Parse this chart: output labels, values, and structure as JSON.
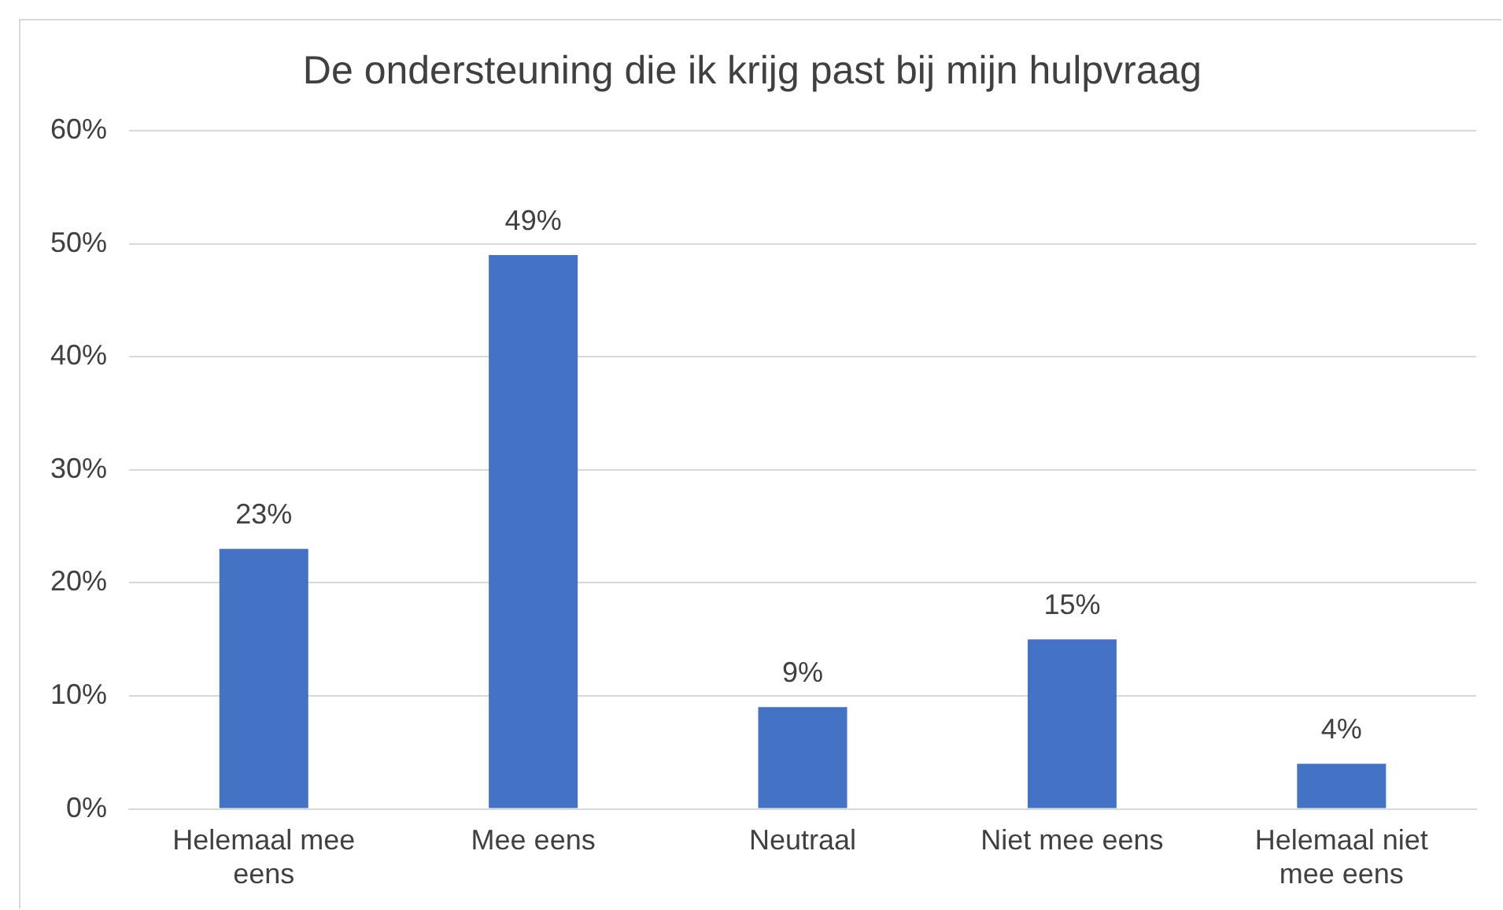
{
  "chart_data": {
    "type": "bar",
    "title": "De ondersteuning die ik krijg past bij mijn hulpvraag",
    "categories": [
      [
        "Helemaal mee",
        "eens"
      ],
      "Mee eens",
      "Neutraal",
      "Niet mee eens",
      [
        "Helemaal niet",
        "mee eens"
      ]
    ],
    "values": [
      23,
      49,
      9,
      15,
      4
    ],
    "color": "#4472c4",
    "data_labels": true,
    "value_labels": [
      "23%",
      "49%",
      "9%",
      "15%",
      "4%"
    ],
    "ylim": [
      0,
      60
    ],
    "yticks": [
      {
        "value": 0,
        "label": "0%"
      },
      {
        "value": 10,
        "label": "10%"
      },
      {
        "value": 20,
        "label": "20%"
      },
      {
        "value": 30,
        "label": "30%"
      },
      {
        "value": 40,
        "label": "40%"
      },
      {
        "value": 50,
        "label": "50%"
      },
      {
        "value": 60,
        "label": "60%"
      }
    ],
    "grid": "y",
    "legend": false
  }
}
